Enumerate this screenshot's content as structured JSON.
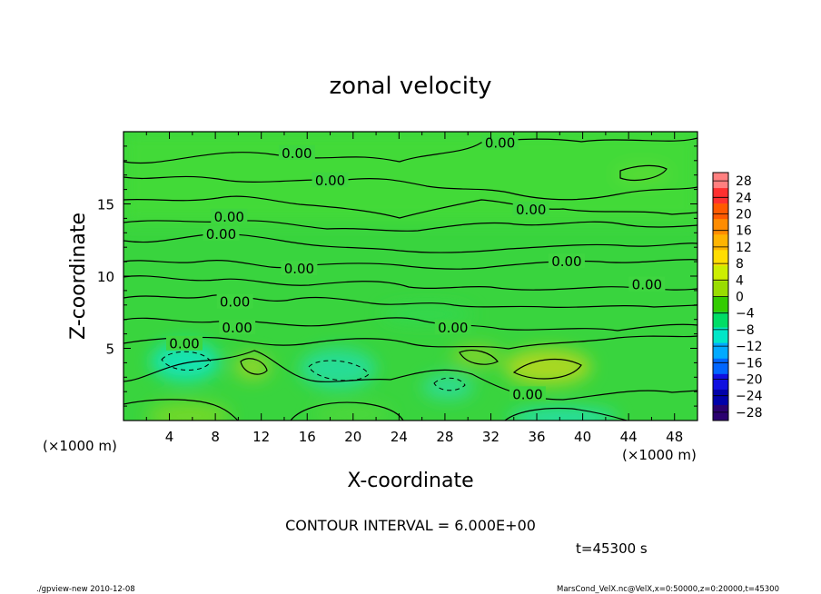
{
  "chart_data": {
    "type": "heatmap",
    "title": "zonal velocity",
    "xlabel": "X-coordinate",
    "ylabel": "Z-coordinate",
    "x_unit": "(×1000 m)",
    "y_unit": "(×1000 m)",
    "xlim": [
      0,
      50
    ],
    "ylim": [
      0,
      20
    ],
    "x_ticks": [
      4,
      8,
      12,
      16,
      20,
      24,
      28,
      32,
      36,
      40,
      44,
      48
    ],
    "y_ticks": [
      5,
      10,
      15
    ],
    "colorbar": {
      "ticks": [
        28,
        24,
        20,
        16,
        12,
        8,
        4,
        0,
        -4,
        -8,
        -12,
        -16,
        -20,
        -24,
        -28
      ],
      "range": [
        -30,
        30
      ],
      "colors": [
        "#ff8080",
        "#ff3030",
        "#ff5a00",
        "#ff8c00",
        "#ffb400",
        "#ffdd00",
        "#ccee00",
        "#99dd00",
        "#33cc00",
        "#00dd66",
        "#00e6c8",
        "#00aaff",
        "#0066ff",
        "#1010e0",
        "#0000aa",
        "#2a0070"
      ]
    },
    "contour_labels": [
      {
        "text": "0.00",
        "x": 32.8,
        "z": 19.2
      },
      {
        "text": "0.00",
        "x": 15.1,
        "z": 18.5
      },
      {
        "text": "0.00",
        "x": 18.0,
        "z": 16.6
      },
      {
        "text": "0.00",
        "x": 35.5,
        "z": 14.6
      },
      {
        "text": "0.00",
        "x": 9.2,
        "z": 14.1
      },
      {
        "text": "0.00",
        "x": 8.5,
        "z": 12.9
      },
      {
        "text": "0.00",
        "x": 38.6,
        "z": 11.0
      },
      {
        "text": "0.00",
        "x": 15.3,
        "z": 10.5
      },
      {
        "text": "0.00",
        "x": 45.6,
        "z": 9.4
      },
      {
        "text": "0.00",
        "x": 9.7,
        "z": 8.2
      },
      {
        "text": "0.00",
        "x": 9.9,
        "z": 6.4
      },
      {
        "text": "0.00",
        "x": 28.7,
        "z": 6.4
      },
      {
        "text": "0.00",
        "x": 5.3,
        "z": 5.3
      },
      {
        "text": "0.00",
        "x": 35.2,
        "z": 1.8
      }
    ],
    "annotations": [
      "CONTOUR INTERVAL = 6.000E+00",
      "t=45300 s"
    ]
  },
  "footer": {
    "left": "./gpview-new  2010-12-08",
    "right": "MarsCond_VelX.nc@VelX,x=0:50000,z=0:20000,t=45300"
  }
}
